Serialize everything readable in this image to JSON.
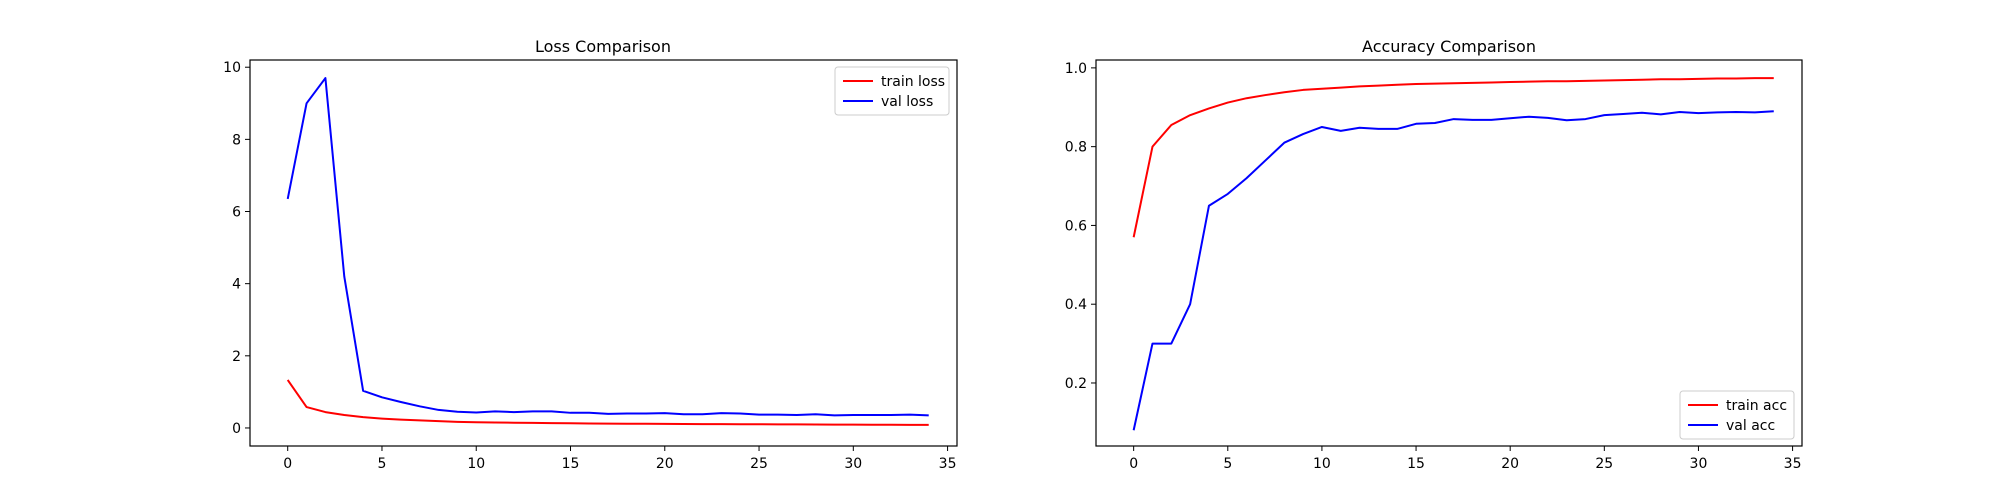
{
  "chart_data": [
    {
      "type": "line",
      "title": "Loss Comparison",
      "xlabel": "",
      "ylabel": "",
      "xlim": [
        -2,
        35.5
      ],
      "ylim": [
        -0.5,
        10.2
      ],
      "xticks": [
        0,
        5,
        10,
        15,
        20,
        25,
        30,
        35
      ],
      "yticks": [
        0,
        2,
        4,
        6,
        8,
        10
      ],
      "grid": false,
      "legend": "top-right",
      "x": [
        0,
        1,
        2,
        3,
        4,
        5,
        6,
        7,
        8,
        9,
        10,
        11,
        12,
        13,
        14,
        15,
        16,
        17,
        18,
        19,
        20,
        21,
        22,
        23,
        24,
        25,
        26,
        27,
        28,
        29,
        30,
        31,
        32,
        33,
        34
      ],
      "series": [
        {
          "name": "train loss",
          "color": "#ff0000",
          "values": [
            1.33,
            0.58,
            0.44,
            0.36,
            0.3,
            0.26,
            0.23,
            0.21,
            0.19,
            0.17,
            0.16,
            0.15,
            0.145,
            0.14,
            0.135,
            0.13,
            0.125,
            0.12,
            0.118,
            0.115,
            0.112,
            0.11,
            0.108,
            0.106,
            0.104,
            0.102,
            0.1,
            0.098,
            0.096,
            0.094,
            0.092,
            0.09,
            0.088,
            0.086,
            0.084
          ]
        },
        {
          "name": "val loss",
          "color": "#0000ff",
          "values": [
            6.35,
            9.0,
            9.7,
            4.2,
            1.03,
            0.85,
            0.72,
            0.6,
            0.5,
            0.45,
            0.43,
            0.46,
            0.44,
            0.46,
            0.46,
            0.42,
            0.42,
            0.39,
            0.4,
            0.4,
            0.41,
            0.38,
            0.38,
            0.41,
            0.4,
            0.37,
            0.37,
            0.36,
            0.38,
            0.35,
            0.36,
            0.36,
            0.36,
            0.37,
            0.35
          ]
        }
      ]
    },
    {
      "type": "line",
      "title": "Accuracy Comparison",
      "xlabel": "",
      "ylabel": "",
      "xlim": [
        -2,
        35.5
      ],
      "ylim": [
        0.04,
        1.02
      ],
      "xticks": [
        0,
        5,
        10,
        15,
        20,
        25,
        30,
        35
      ],
      "yticks": [
        0.2,
        0.4,
        0.6,
        0.8,
        1.0
      ],
      "ytick_labels": [
        "0.2",
        "0.4",
        "0.6",
        "0.8",
        "1.0"
      ],
      "grid": false,
      "legend": "bottom-right",
      "x": [
        0,
        1,
        2,
        3,
        4,
        5,
        6,
        7,
        8,
        9,
        10,
        11,
        12,
        13,
        14,
        15,
        16,
        17,
        18,
        19,
        20,
        21,
        22,
        23,
        24,
        25,
        26,
        27,
        28,
        29,
        30,
        31,
        32,
        33,
        34
      ],
      "series": [
        {
          "name": "train acc",
          "color": "#ff0000",
          "values": [
            0.57,
            0.8,
            0.855,
            0.88,
            0.897,
            0.912,
            0.923,
            0.931,
            0.938,
            0.944,
            0.947,
            0.95,
            0.953,
            0.955,
            0.957,
            0.959,
            0.96,
            0.961,
            0.962,
            0.963,
            0.964,
            0.965,
            0.966,
            0.966,
            0.967,
            0.968,
            0.969,
            0.97,
            0.971,
            0.971,
            0.972,
            0.973,
            0.973,
            0.974,
            0.974
          ]
        },
        {
          "name": "val acc",
          "color": "#0000ff",
          "values": [
            0.08,
            0.3,
            0.3,
            0.4,
            0.65,
            0.68,
            0.72,
            0.765,
            0.81,
            0.832,
            0.85,
            0.84,
            0.848,
            0.845,
            0.845,
            0.858,
            0.86,
            0.87,
            0.868,
            0.868,
            0.872,
            0.876,
            0.873,
            0.867,
            0.87,
            0.88,
            0.883,
            0.886,
            0.882,
            0.888,
            0.885,
            0.887,
            0.888,
            0.887,
            0.89
          ]
        }
      ]
    }
  ]
}
